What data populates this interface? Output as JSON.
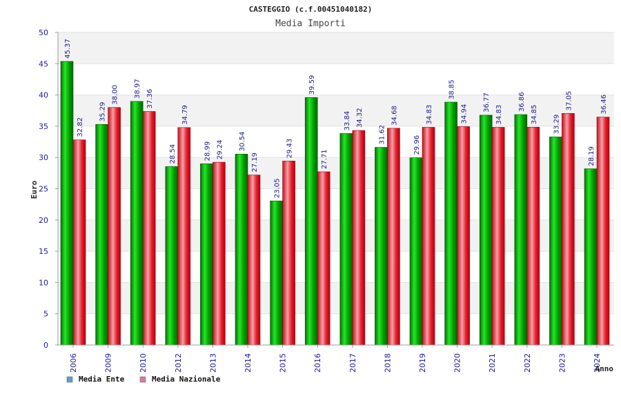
{
  "chart_data": {
    "type": "bar",
    "title": "CASTEGGIO (c.f.00451040182)",
    "subtitle": "Media Importi",
    "xlabel": "Anno",
    "ylabel": "Euro",
    "ylim": [
      0,
      50
    ],
    "yticks": [
      0,
      5,
      10,
      15,
      20,
      25,
      30,
      35,
      40,
      45,
      50
    ],
    "grid": true,
    "legend_position": "bottom-left",
    "categories": [
      "2006",
      "2009",
      "2010",
      "2012",
      "2013",
      "2014",
      "2015",
      "2016",
      "2017",
      "2018",
      "2019",
      "2020",
      "2021",
      "2022",
      "2023",
      "2024"
    ],
    "series": [
      {
        "name": "Media Ente",
        "color": "#00b000",
        "legend_color": "#5b9bd5",
        "values": [
          45.37,
          35.29,
          38.97,
          28.54,
          28.99,
          30.54,
          23.05,
          39.59,
          33.84,
          31.62,
          29.96,
          38.85,
          36.77,
          36.86,
          33.29,
          28.19
        ],
        "labels": [
          "45.37",
          "35.29",
          "38.97",
          "28.54",
          "28.99",
          "30.54",
          "23.05",
          "39.59",
          "33.84",
          "31.62",
          "29.96",
          "38.85",
          "36.77",
          "36.86",
          "33.29",
          "28.19"
        ]
      },
      {
        "name": "Media Nazionale",
        "color": "#e8202a",
        "legend_color": "#d67ba0",
        "values": [
          32.82,
          38.0,
          37.36,
          34.79,
          29.24,
          27.19,
          29.43,
          27.71,
          34.32,
          34.68,
          34.83,
          34.94,
          34.83,
          34.85,
          37.05,
          36.46
        ],
        "labels": [
          "32.82",
          "38.00",
          "37.36",
          "34.79",
          "29.24",
          "27.19",
          "29.43",
          "27.71",
          "34.32",
          "34.68",
          "34.83",
          "34.94",
          "34.83",
          "34.85",
          "37.05",
          "36.46"
        ]
      }
    ]
  }
}
